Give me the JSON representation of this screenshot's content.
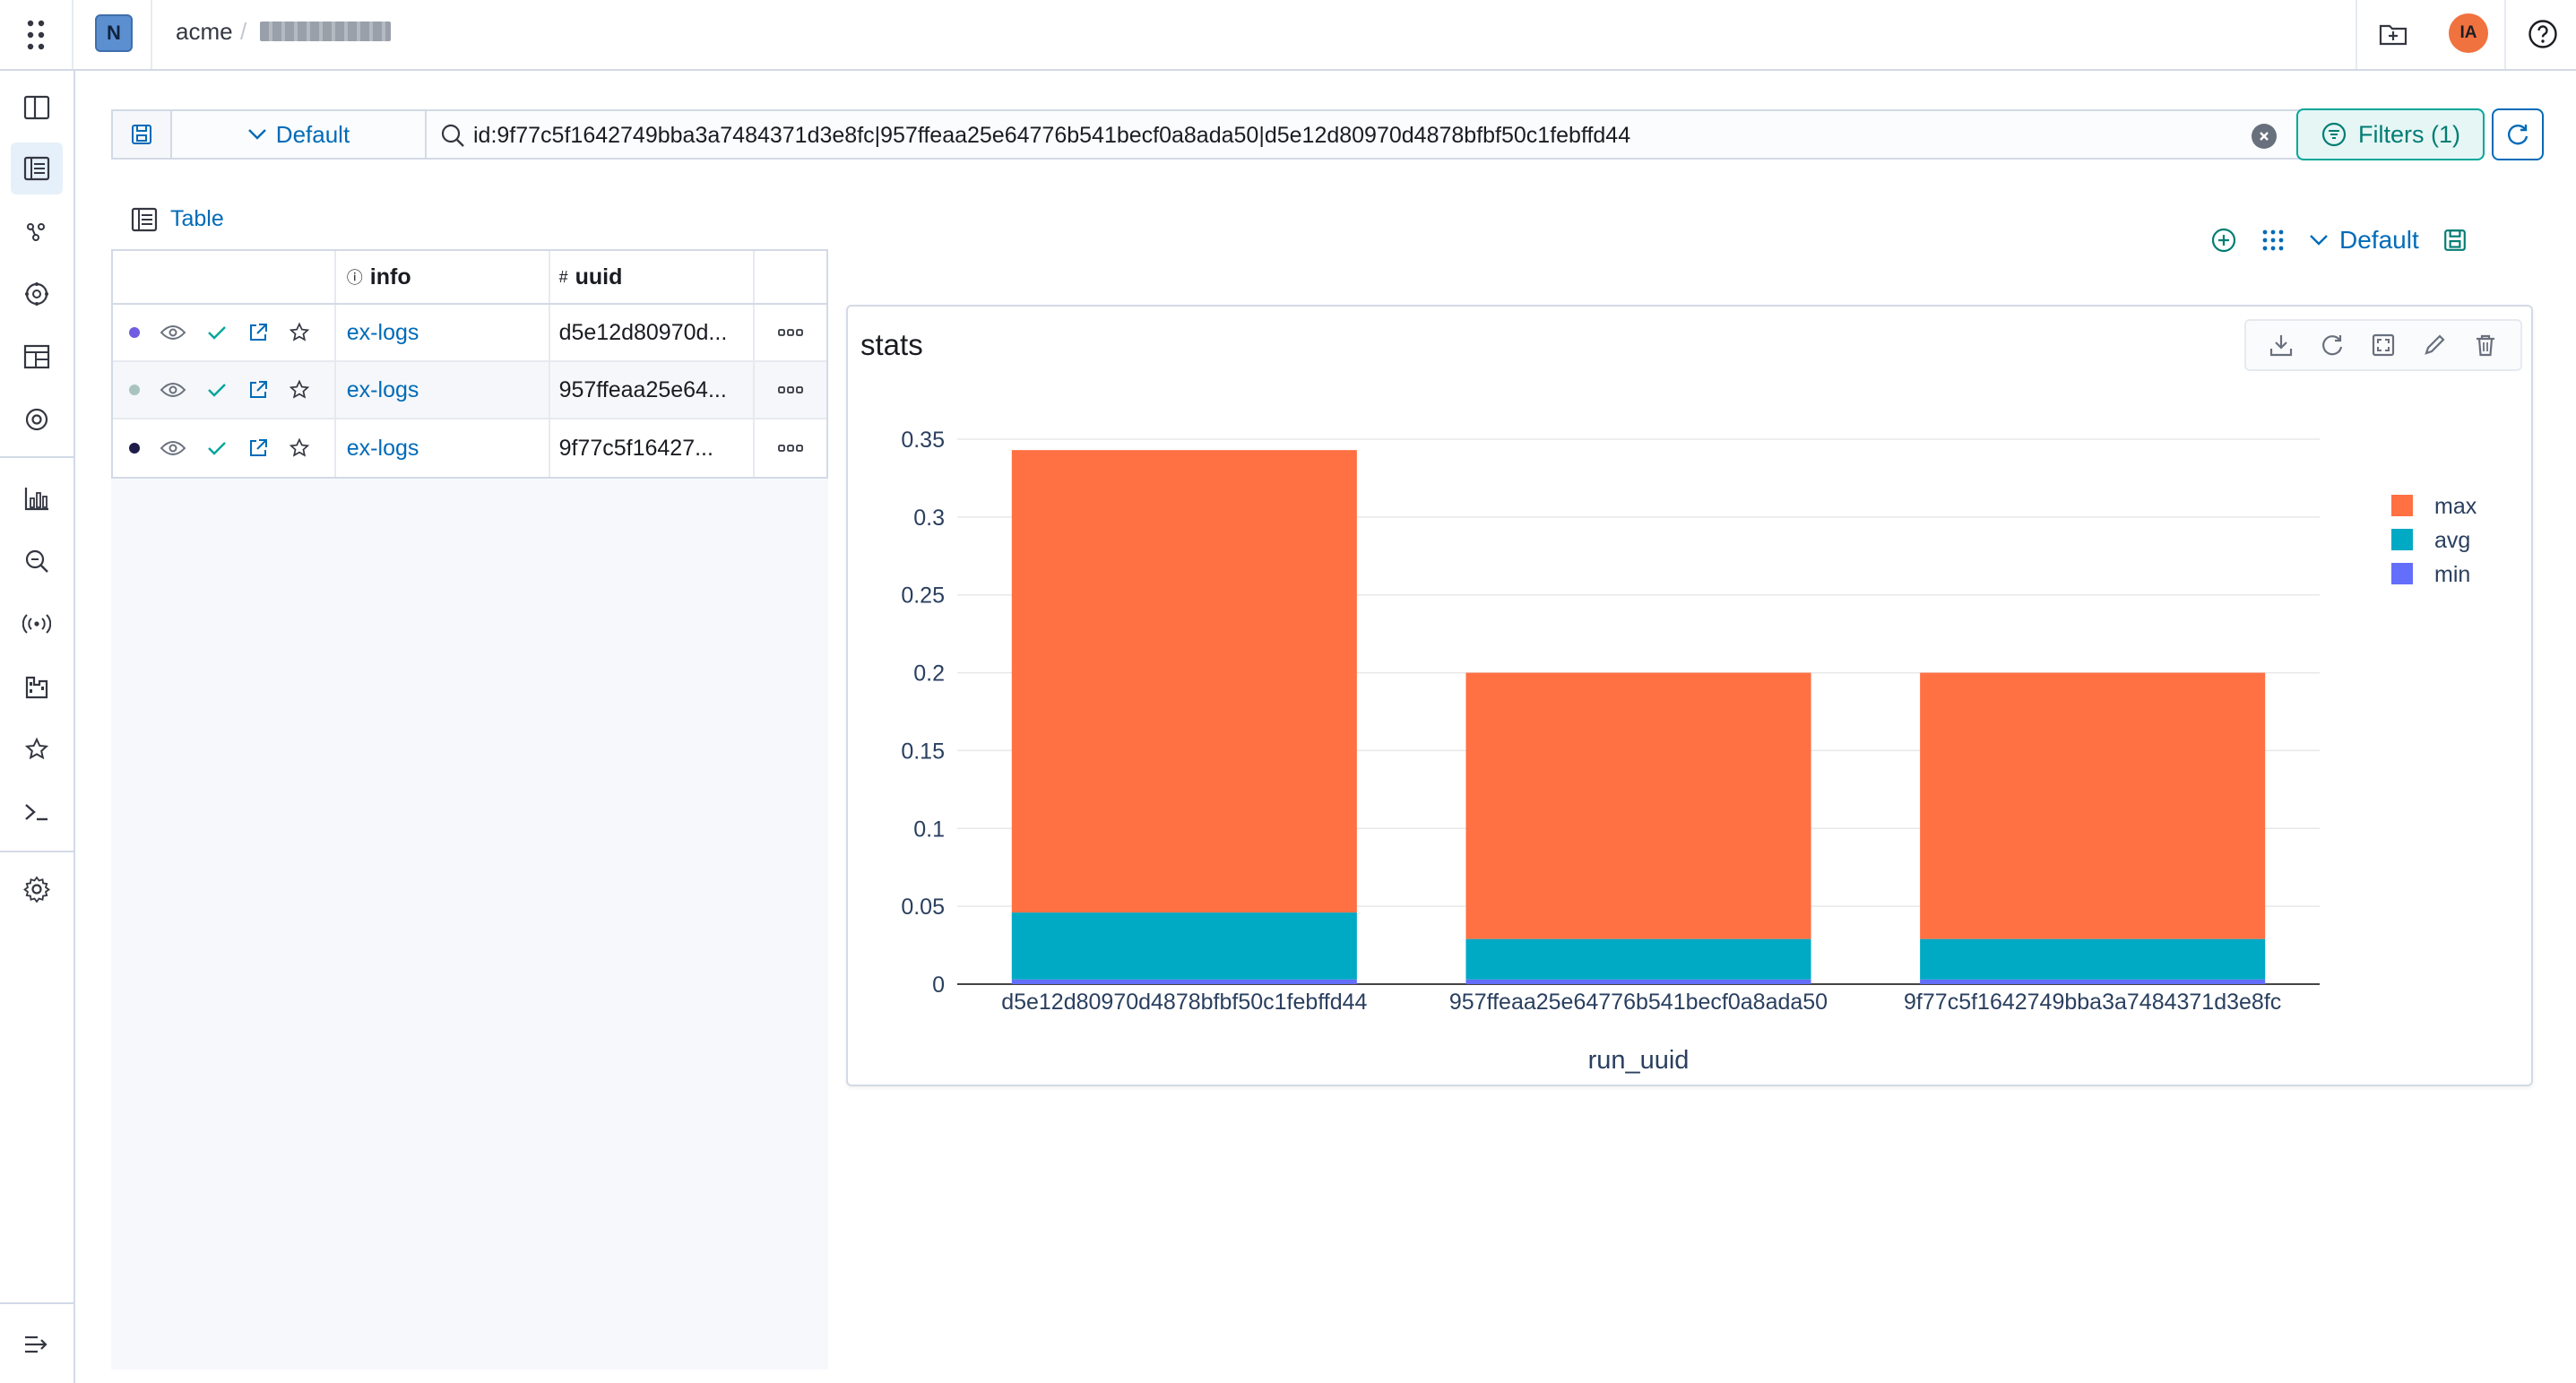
{
  "header": {
    "logo_letter": "N",
    "org": "acme",
    "separator": "/",
    "avatar_initials": "IA"
  },
  "sidebar": {
    "items": [
      {
        "icon": "columns-icon"
      },
      {
        "icon": "table-list-icon",
        "active": true
      },
      {
        "icon": "graph-nodes-icon"
      },
      {
        "icon": "cluster-icon"
      },
      {
        "icon": "dashboard-icon"
      },
      {
        "icon": "target-icon"
      },
      {
        "icon": "bar-chart-icon"
      },
      {
        "icon": "zoom-icon"
      },
      {
        "icon": "broadcast-icon"
      },
      {
        "icon": "building-icon"
      },
      {
        "icon": "star-icon"
      },
      {
        "icon": "terminal-icon"
      },
      {
        "icon": "gear-icon"
      },
      {
        "icon": "expand-icon"
      }
    ]
  },
  "search": {
    "preset_label": "Default",
    "query": "id:9f77c5f1642749bba3a7484371d3e8fc|957ffeaa25e64776b541becf0a8ada50|d5e12d80970d4878bfbf50c1febffd44",
    "filters_label": "Filters (1)"
  },
  "table": {
    "tab_label": "Table",
    "columns": {
      "info": "info",
      "uuid": "uuid",
      "info_icon": "ⓘ",
      "uuid_icon": "#"
    },
    "rows": [
      {
        "color": "#6f5ce0",
        "name": "ex-logs",
        "uuid": "d5e12d80970d..."
      },
      {
        "color": "#a9c4c0",
        "name": "ex-logs",
        "uuid": "957ffeaa25e64..."
      },
      {
        "color": "#1f1c4a",
        "name": "ex-logs",
        "uuid": "9f77c5f16427..."
      }
    ]
  },
  "dashboard": {
    "layout_label": "Default"
  },
  "chart_data": {
    "type": "bar",
    "stacked": true,
    "title": "stats",
    "xlabel": "run_uuid",
    "ylabel": "",
    "ylim": [
      0,
      0.35
    ],
    "yticks": [
      0,
      0.05,
      0.1,
      0.15,
      0.2,
      0.25,
      0.3,
      0.35
    ],
    "ytick_labels": [
      "0",
      "0.05",
      "0.1",
      "0.15",
      "0.2",
      "0.25",
      "0.3",
      "0.35"
    ],
    "categories": [
      "d5e12d80970d4878bfbf50c1febffd44",
      "957ffeaa25e64776b541becf0a8ada50",
      "9f77c5f1642749bba3a7484371d3e8fc"
    ],
    "series": [
      {
        "name": "min",
        "color": "#636efa",
        "values": [
          0.003,
          0.003,
          0.003
        ]
      },
      {
        "name": "avg",
        "color": "#00a9c4",
        "values": [
          0.043,
          0.026,
          0.026
        ]
      },
      {
        "name": "max",
        "color": "#ff7043",
        "values": [
          0.297,
          0.171,
          0.171
        ]
      }
    ],
    "legend_order": [
      "max",
      "avg",
      "min"
    ],
    "legend_position": "top-right",
    "grid": true
  }
}
